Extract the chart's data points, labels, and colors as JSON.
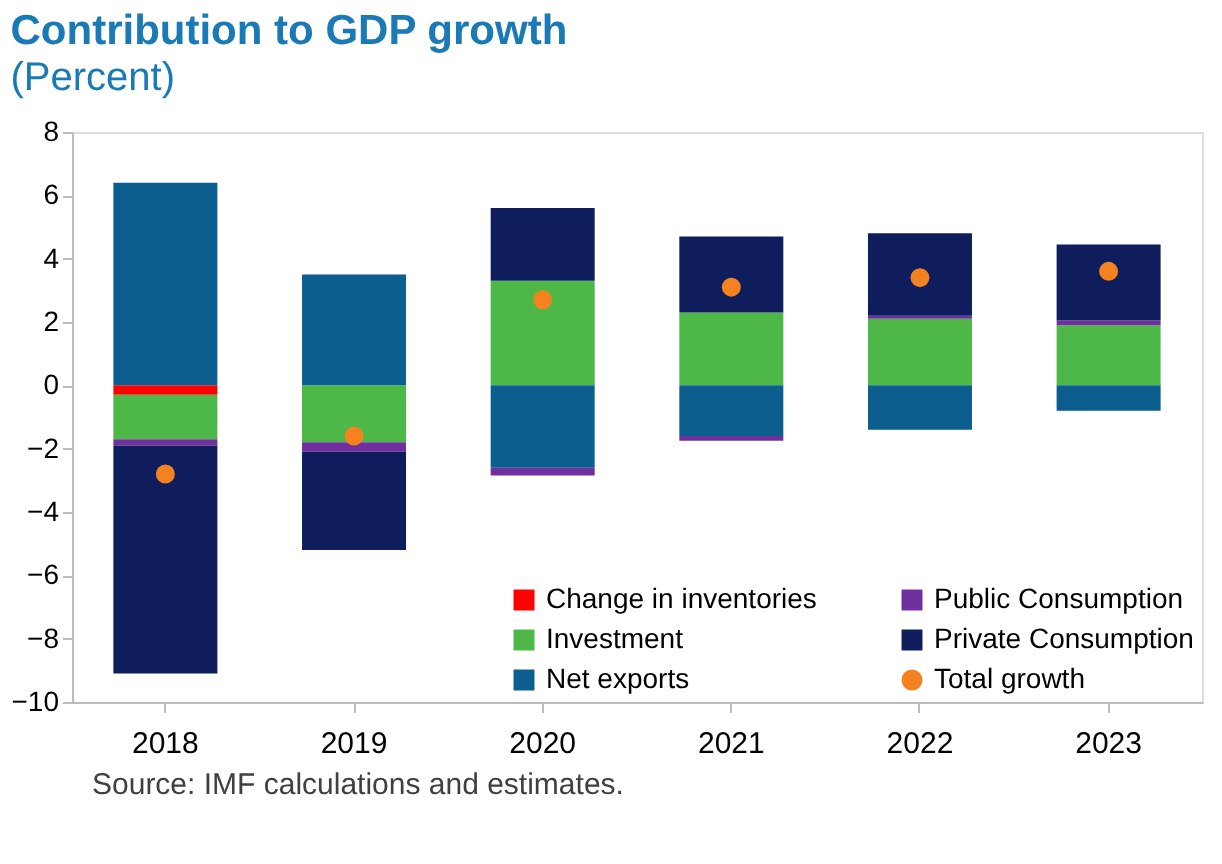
{
  "chart_data": {
    "type": "bar",
    "title": "Contribution to GDP growth",
    "subtitle": "(Percent)",
    "categories": [
      "2018",
      "2019",
      "2020",
      "2021",
      "2022",
      "2023"
    ],
    "stacked": true,
    "series": [
      {
        "name": "Change in inventories",
        "color": "#ff0000",
        "values": [
          -0.3,
          null,
          null,
          null,
          null,
          null
        ]
      },
      {
        "name": "Investment",
        "color": "#4db848",
        "values": [
          -1.4,
          -1.8,
          3.3,
          2.3,
          2.1,
          1.9
        ]
      },
      {
        "name": "Net exports",
        "color": "#0b5e8e",
        "values": [
          6.4,
          3.5,
          -2.6,
          -1.6,
          -1.4,
          -0.8
        ]
      },
      {
        "name": "Public Consumption",
        "color": "#7030a0",
        "values": [
          -0.2,
          -0.3,
          -0.25,
          -0.15,
          0.1,
          0.15
        ]
      },
      {
        "name": "Private Consumption",
        "color": "#0f1d5c",
        "values": [
          -7.2,
          -3.1,
          2.3,
          2.4,
          2.6,
          2.4
        ]
      },
      {
        "name": "Total growth",
        "color": "#f58220",
        "type": "scatter",
        "marker": "circle",
        "values": [
          -2.8,
          -1.6,
          2.7,
          3.1,
          3.4,
          3.6
        ]
      }
    ],
    "ylim": [
      -10,
      8
    ],
    "yticks": [
      -10,
      -8,
      -6,
      -4,
      -2,
      0,
      2,
      4,
      6,
      8
    ],
    "grid": false,
    "legend": "bottom right",
    "annotations": [
      "Source: IMF calculations and estimates."
    ]
  }
}
